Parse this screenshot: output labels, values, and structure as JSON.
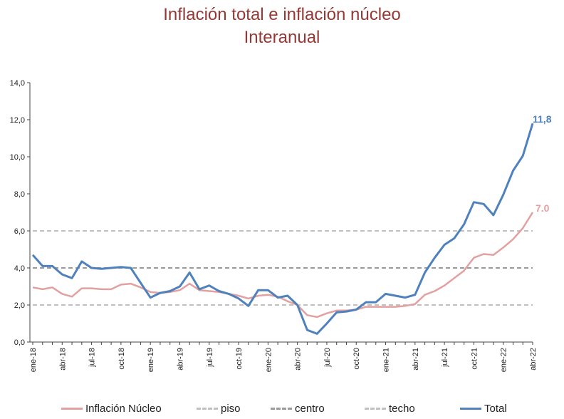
{
  "title": "Inflación total e inflación núcleo",
  "subtitle": "Interanual",
  "chart_data": {
    "type": "line",
    "title": "Inflación total e inflación núcleo",
    "subtitle": "Interanual",
    "ylim": [
      0,
      14
    ],
    "yticks": [
      "0,0",
      "2,0",
      "4,0",
      "6,0",
      "8,0",
      "10,0",
      "12,0",
      "14,0"
    ],
    "xlabels": [
      "ene-18",
      "abr-18",
      "jul-18",
      "oct-18",
      "ene-19",
      "abr-19",
      "jul-19",
      "oct-19",
      "ene-20",
      "abr-20",
      "jul-20",
      "oct-20",
      "ene-21",
      "abr-21",
      "jul-21",
      "oct-21",
      "ene-22",
      "abr-22"
    ],
    "grid": false,
    "legend_position": "bottom",
    "x": [
      "ene-18",
      "feb-18",
      "mar-18",
      "abr-18",
      "may-18",
      "jun-18",
      "jul-18",
      "ago-18",
      "sep-18",
      "oct-18",
      "nov-18",
      "dic-18",
      "ene-19",
      "feb-19",
      "mar-19",
      "abr-19",
      "may-19",
      "jun-19",
      "jul-19",
      "ago-19",
      "sep-19",
      "oct-19",
      "nov-19",
      "dic-19",
      "ene-20",
      "feb-20",
      "mar-20",
      "abr-20",
      "may-20",
      "jun-20",
      "jul-20",
      "ago-20",
      "sep-20",
      "oct-20",
      "nov-20",
      "dic-20",
      "ene-21",
      "feb-21",
      "mar-21",
      "abr-21",
      "may-21",
      "jun-21",
      "jul-21",
      "ago-21",
      "sep-21",
      "oct-21",
      "nov-21",
      "dic-21",
      "ene-22",
      "feb-22",
      "mar-22",
      "abr-22"
    ],
    "series": [
      {
        "name": "Inflación Núcleo",
        "color": "#e3a0a0",
        "style": "solid",
        "values": [
          2.95,
          2.85,
          2.95,
          2.6,
          2.45,
          2.9,
          2.9,
          2.85,
          2.85,
          3.1,
          3.15,
          2.95,
          2.7,
          2.65,
          2.7,
          2.8,
          3.15,
          2.8,
          2.75,
          2.7,
          2.6,
          2.5,
          2.35,
          2.5,
          2.55,
          2.45,
          2.2,
          2.0,
          1.45,
          1.35,
          1.55,
          1.7,
          1.7,
          1.75,
          1.9,
          1.9,
          1.9,
          1.9,
          1.95,
          2.05,
          2.55,
          2.75,
          3.05,
          3.45,
          3.85,
          4.55,
          4.75,
          4.7,
          5.1,
          5.55,
          6.15,
          7.0
        ]
      },
      {
        "name": "piso",
        "color": "#c0c0c0",
        "style": "dashed",
        "values": [
          2,
          2,
          2,
          2,
          2,
          2,
          2,
          2,
          2,
          2,
          2,
          2,
          2,
          2,
          2,
          2,
          2,
          2,
          2,
          2,
          2,
          2,
          2,
          2,
          2,
          2,
          2,
          2,
          2,
          2,
          2,
          2,
          2,
          2,
          2,
          2,
          2,
          2,
          2,
          2,
          2,
          2,
          2,
          2,
          2,
          2,
          2,
          2,
          2,
          2,
          2,
          2
        ]
      },
      {
        "name": "centro",
        "color": "#9a9a9a",
        "style": "dashed",
        "values": [
          4,
          4,
          4,
          4,
          4,
          4,
          4,
          4,
          4,
          4,
          4,
          4,
          4,
          4,
          4,
          4,
          4,
          4,
          4,
          4,
          4,
          4,
          4,
          4,
          4,
          4,
          4,
          4,
          4,
          4,
          4,
          4,
          4,
          4,
          4,
          4,
          4,
          4,
          4,
          4,
          4,
          4,
          4,
          4,
          4,
          4,
          4,
          4,
          4,
          4,
          4,
          4
        ]
      },
      {
        "name": "techo",
        "color": "#c0c0c0",
        "style": "dashed",
        "values": [
          6,
          6,
          6,
          6,
          6,
          6,
          6,
          6,
          6,
          6,
          6,
          6,
          6,
          6,
          6,
          6,
          6,
          6,
          6,
          6,
          6,
          6,
          6,
          6,
          6,
          6,
          6,
          6,
          6,
          6,
          6,
          6,
          6,
          6,
          6,
          6,
          6,
          6,
          6,
          6,
          6,
          6,
          6,
          6,
          6,
          6,
          6,
          6,
          6,
          6,
          6,
          6
        ]
      },
      {
        "name": "Total",
        "color": "#4f81bd",
        "style": "solid",
        "values": [
          4.7,
          4.1,
          4.1,
          3.65,
          3.45,
          4.35,
          4.0,
          3.95,
          4.0,
          4.05,
          4.0,
          3.2,
          2.4,
          2.65,
          2.75,
          3.0,
          3.75,
          2.85,
          3.05,
          2.75,
          2.6,
          2.35,
          1.95,
          2.8,
          2.8,
          2.4,
          2.5,
          2.0,
          0.65,
          0.45,
          1.0,
          1.6,
          1.65,
          1.75,
          2.15,
          2.15,
          2.6,
          2.5,
          2.4,
          2.55,
          3.75,
          4.55,
          5.25,
          5.6,
          6.35,
          7.55,
          7.45,
          6.85,
          7.95,
          9.25,
          10.05,
          11.8
        ]
      }
    ],
    "annotations": [
      {
        "series": "Total",
        "text": "11,8",
        "color": "#4f81bd"
      },
      {
        "series": "Inflación Núcleo",
        "text": "7.0",
        "color": "#e3a0a0"
      }
    ]
  }
}
